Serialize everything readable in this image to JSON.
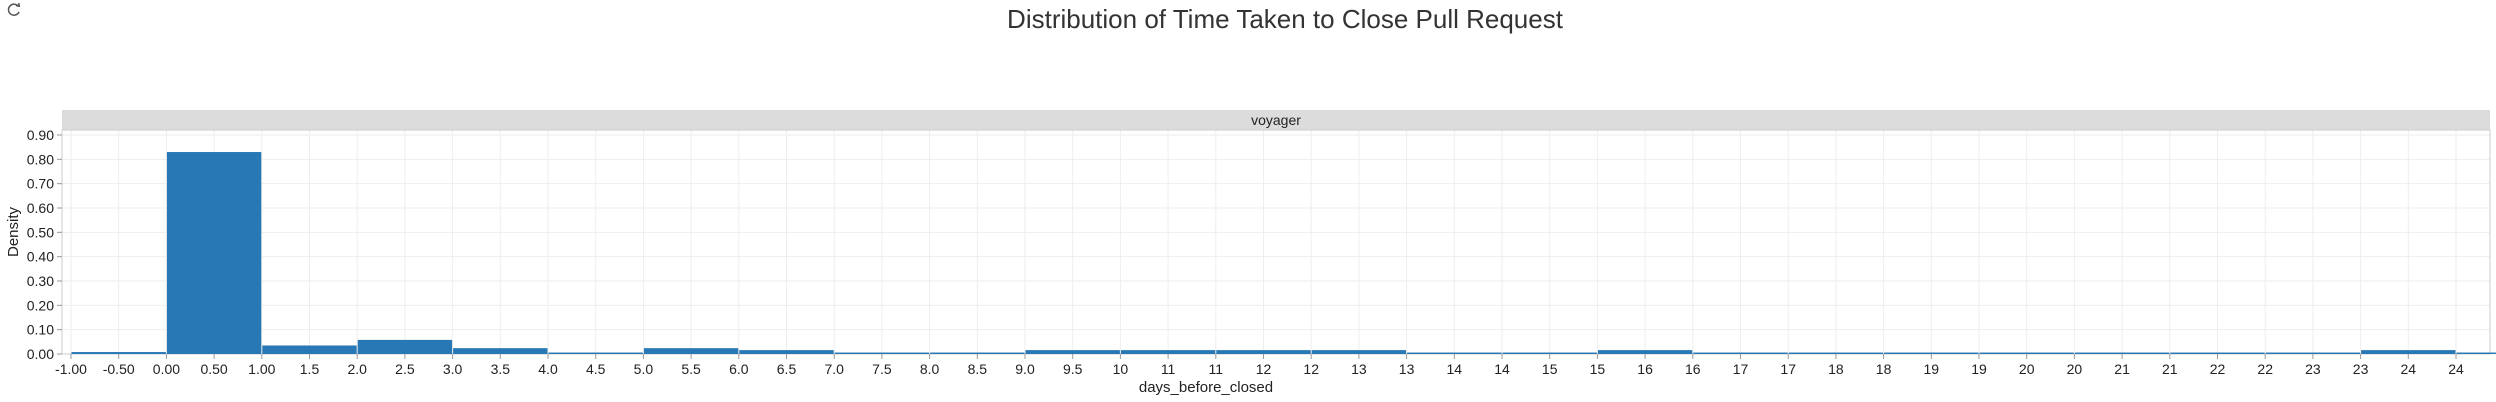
{
  "chart_data": {
    "type": "bar",
    "title": "Distribution of Time Taken to Close Pull Request",
    "facet_label": "voyager",
    "xlabel": "days_before_closed",
    "ylabel": "Density",
    "ylim": [
      0,
      0.9
    ],
    "y_ticks": [
      "0.00",
      "0.10",
      "0.20",
      "0.30",
      "0.40",
      "0.50",
      "0.60",
      "0.70",
      "0.80",
      "0.90"
    ],
    "x_tick_labels": [
      "-1.00",
      "-0.50",
      "0.00",
      "0.50",
      "1.00",
      "1.5",
      "2.0",
      "2.5",
      "3.0",
      "3.5",
      "4.0",
      "4.5",
      "5.0",
      "5.5",
      "6.0",
      "6.5",
      "7.0",
      "7.5",
      "8.0",
      "8.5",
      "9.0",
      "9.5",
      "10",
      "11",
      "11",
      "12",
      "12",
      "13",
      "13",
      "14",
      "14",
      "15",
      "15",
      "16",
      "16",
      "17",
      "17",
      "18",
      "18",
      "19",
      "19",
      "20",
      "20",
      "21",
      "21",
      "22",
      "22",
      "23",
      "23",
      "24",
      "24"
    ],
    "bin_width": 1,
    "x_start": -1,
    "values": [
      0.008,
      0.83,
      0.035,
      0.058,
      0.024,
      0.006,
      0.024,
      0.016,
      0.006,
      0.006,
      0.016,
      0.016,
      0.016,
      0.016,
      0.006,
      0.006,
      0.016,
      0.006,
      0.006,
      0.006,
      0.006,
      0.006,
      0.006,
      0.006,
      0.016,
      0.006
    ],
    "bar_color": "#2878b5",
    "grid": true
  },
  "colors": {
    "facet_strip": "#dcdcdc",
    "grid": "#eeeeee"
  },
  "icons": {
    "refresh": "refresh-icon"
  }
}
